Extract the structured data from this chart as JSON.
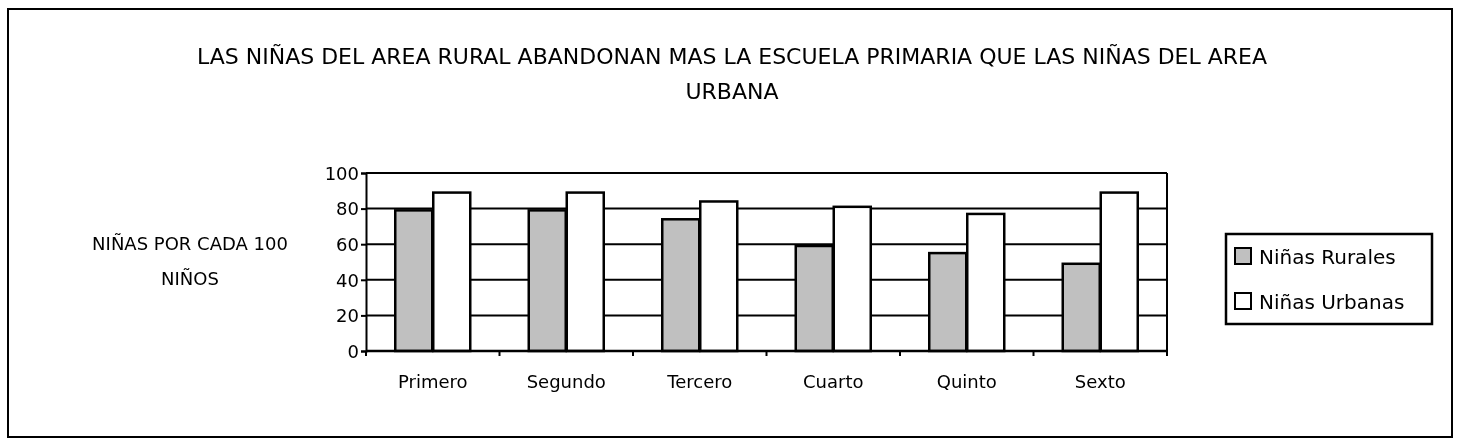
{
  "chart_data": {
    "type": "bar",
    "title": "LAS NIÑAS DEL AREA RURAL ABANDONAN MAS LA ESCUELA PRIMARIA QUE LAS NIÑAS DEL AREA URBANA",
    "ylabel": "NIÑAS POR CADA 100 NIÑOS",
    "categories": [
      "Primero",
      "Segundo",
      "Tercero",
      "Cuarto",
      "Quinto",
      "Sexto"
    ],
    "series": [
      {
        "name": "Niñas Rurales",
        "color": "#c0c0c0",
        "values": [
          79,
          79,
          74,
          59,
          55,
          49
        ]
      },
      {
        "name": "Niñas Urbanas",
        "color": "#ffffff",
        "values": [
          89,
          89,
          84,
          81,
          77,
          89
        ]
      }
    ],
    "ylim": [
      0,
      100
    ],
    "yticks": [
      0,
      20,
      40,
      60,
      80,
      100
    ],
    "grid": "y",
    "legend": "right"
  }
}
